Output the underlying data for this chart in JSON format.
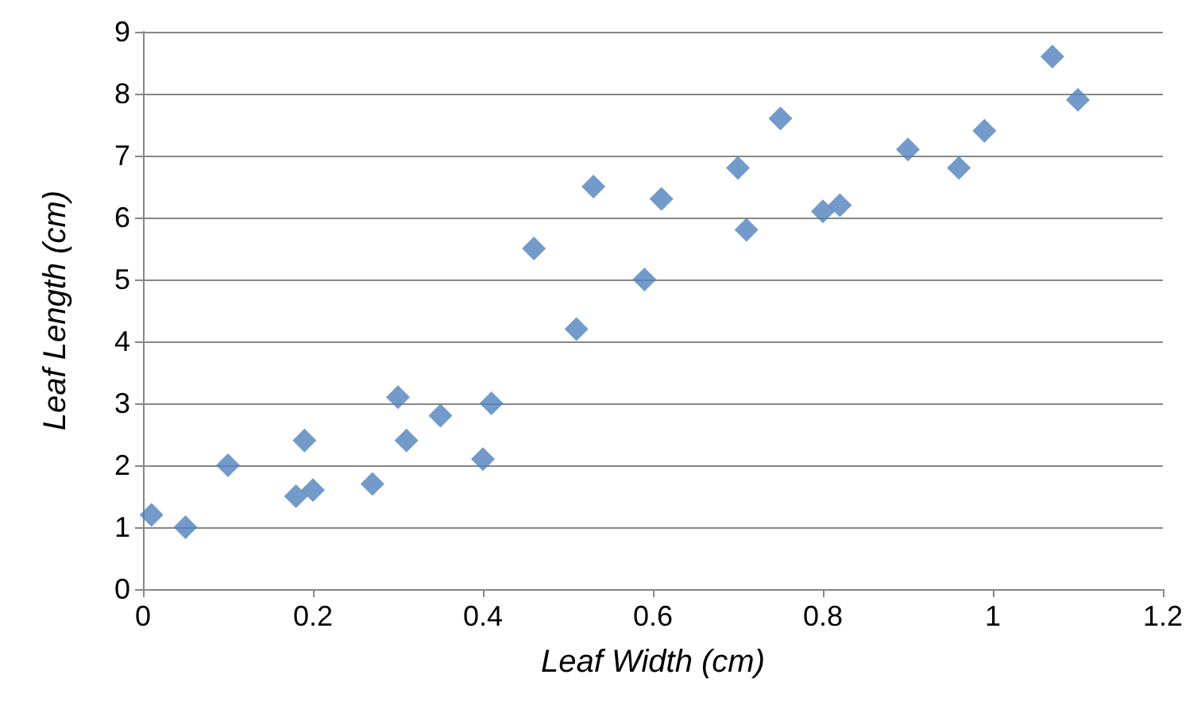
{
  "chart_data": {
    "type": "scatter",
    "xlabel": "Leaf Width (cm)",
    "ylabel": "Leaf Length (cm)",
    "x": [
      0.01,
      0.05,
      0.1,
      0.18,
      0.19,
      0.2,
      0.27,
      0.3,
      0.31,
      0.35,
      0.4,
      0.41,
      0.46,
      0.51,
      0.53,
      0.59,
      0.61,
      0.7,
      0.71,
      0.75,
      0.8,
      0.82,
      0.9,
      0.96,
      0.99,
      1.07,
      1.1
    ],
    "series": [
      {
        "color": "#4f81bd",
        "values": [
          1.2,
          1.0,
          2.0,
          1.5,
          2.4,
          1.6,
          1.7,
          3.1,
          2.4,
          2.8,
          2.1,
          3.0,
          5.5,
          4.2,
          6.5,
          5.0,
          6.3,
          6.8,
          5.8,
          7.6,
          6.1,
          6.2,
          7.1,
          6.8,
          7.4,
          8.6,
          7.9
        ]
      }
    ],
    "xlim": [
      0,
      1.2
    ],
    "xticks": [
      {
        "value": 0,
        "label": "0"
      },
      {
        "value": 0.2,
        "label": "0.2"
      },
      {
        "value": 0.4,
        "label": "0.4"
      },
      {
        "value": 0.6,
        "label": "0.6"
      },
      {
        "value": 0.8,
        "label": "0.8"
      },
      {
        "value": 1,
        "label": "1"
      },
      {
        "value": 1.2,
        "label": "1.2"
      }
    ],
    "ylim": [
      0,
      9
    ],
    "yticks": [
      0,
      1,
      2,
      3,
      4,
      5,
      6,
      7,
      8,
      9
    ],
    "grid": "y",
    "marker": "diamond"
  }
}
